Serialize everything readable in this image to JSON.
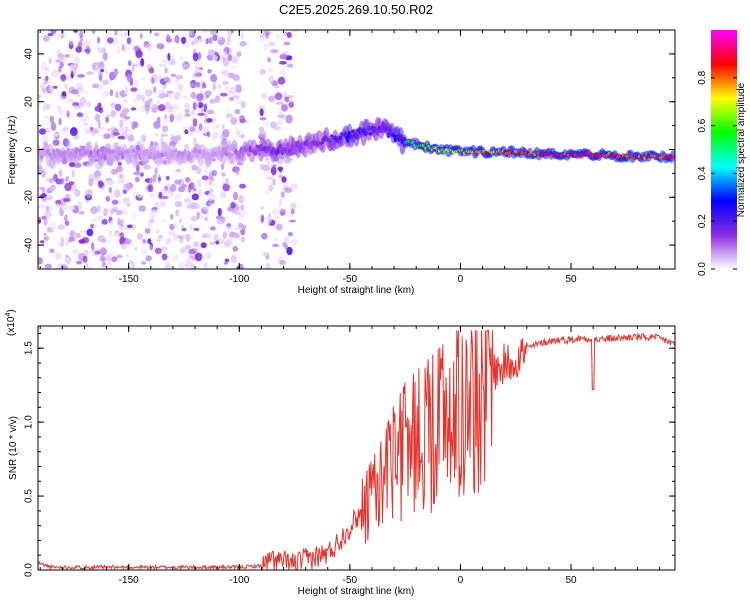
{
  "title": "C2E5.2025.269.10.50.R02",
  "chart_data": [
    {
      "type": "heatmap",
      "xlabel": "Height of straight line (km)",
      "ylabel": "Frequency (Hz)",
      "xlim": [
        -191,
        97
      ],
      "ylim": [
        -50,
        50
      ],
      "xticks": [
        "-150",
        "-100",
        "-50",
        "0",
        "50"
      ],
      "xtick_values": [
        -150,
        -100,
        -50,
        0,
        50
      ],
      "yticks": [
        "-40",
        "-20",
        "0",
        "20",
        "40"
      ],
      "ytick_values": [
        -40,
        -20,
        0,
        20,
        40
      ],
      "colorbar": {
        "label": "Normalized spectral amplitude",
        "range": [
          0,
          1
        ],
        "ticks": [
          "0.0",
          "0.2",
          "0.4",
          "0.6",
          "0.8"
        ],
        "tick_values": [
          0.0,
          0.2,
          0.4,
          0.6,
          0.8
        ],
        "colormap": [
          "#ffffff",
          "#8a2be2",
          "#0000ff",
          "#00ffff",
          "#00ff00",
          "#ffff00",
          "#ff0000",
          "#ff00ff"
        ]
      },
      "ridge": {
        "x": [
          -190,
          -170,
          -150,
          -130,
          -110,
          -100,
          -90,
          -80,
          -70,
          -60,
          -50,
          -40,
          -35,
          -30,
          -20,
          -10,
          0,
          20,
          40,
          60,
          80,
          97
        ],
        "y": [
          -2,
          -2,
          -2,
          -2,
          -2,
          -1,
          0,
          0,
          2,
          4,
          6,
          8,
          9,
          5,
          2,
          0,
          -1,
          -1,
          -2,
          -2,
          -3,
          -3
        ],
        "amplitude": [
          0.15,
          0.18,
          0.15,
          0.15,
          0.15,
          0.2,
          0.3,
          0.3,
          0.3,
          0.35,
          0.45,
          0.4,
          0.35,
          0.5,
          0.6,
          0.75,
          0.8,
          0.9,
          0.95,
          0.95,
          0.9,
          0.95
        ]
      },
      "noise_regions": [
        [
          -191,
          -98
        ],
        [
          -90,
          -75
        ]
      ]
    },
    {
      "type": "line",
      "xlabel": "Height of straight line (km)",
      "ylabel": "SNR (10 * v/v)",
      "y_multiplier": "(x10",
      "y_multiplier_exp": "4",
      "y_multiplier_close": ")",
      "xlim": [
        -191,
        97
      ],
      "ylim": [
        0,
        1.65
      ],
      "xticks": [
        "-150",
        "-100",
        "-50",
        "0",
        "50"
      ],
      "xtick_values": [
        -150,
        -100,
        -50,
        0,
        50
      ],
      "yticks": [
        "0.0",
        "0.5",
        "1.0",
        "1.5"
      ],
      "ytick_values": [
        0.0,
        0.5,
        1.0,
        1.5
      ],
      "color": "#e8312a",
      "x": [
        -191,
        -185,
        -175,
        -150,
        -125,
        -100,
        -90,
        -85,
        -80,
        -75,
        -70,
        -60,
        -55,
        -50,
        -45,
        -40,
        -35,
        -30,
        -25,
        -20,
        -15,
        -10,
        -5,
        0,
        5,
        10,
        15,
        20,
        25,
        30,
        35,
        40,
        45,
        50,
        55,
        59,
        60,
        62,
        70,
        80,
        90,
        97
      ],
      "y": [
        0.05,
        0.02,
        0.02,
        0.02,
        0.02,
        0.02,
        0.03,
        0.08,
        0.06,
        0.05,
        0.08,
        0.12,
        0.2,
        0.3,
        0.4,
        0.5,
        0.6,
        0.75,
        0.85,
        0.9,
        0.95,
        1.0,
        1.05,
        1.15,
        1.2,
        1.3,
        1.35,
        1.4,
        1.45,
        1.5,
        1.53,
        1.55,
        1.56,
        1.56,
        1.57,
        1.57,
        1.22,
        1.56,
        1.57,
        1.58,
        1.57,
        1.53
      ]
    }
  ]
}
